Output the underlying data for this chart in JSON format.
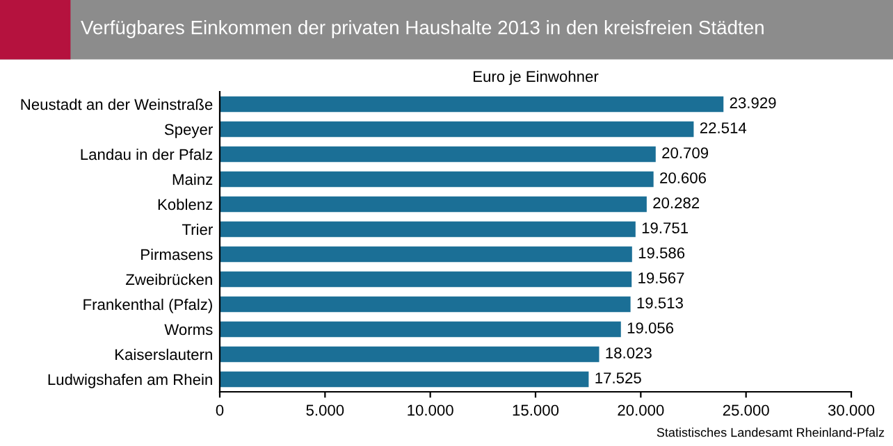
{
  "chart_data": {
    "type": "bar",
    "orientation": "horizontal",
    "title": "Verfügbares Einkommen der privaten Haushalte 2013 in den kreisfreien Städten",
    "subtitle": "Euro je Einwohner",
    "categories": [
      "Neustadt an der Weinstraße",
      "Speyer",
      "Landau in der Pfalz",
      "Mainz",
      "Koblenz",
      "Trier",
      "Pirmasens",
      "Zweibrücken",
      "Frankenthal (Pfalz)",
      "Worms",
      "Kaiserslautern",
      "Ludwigshafen am Rhein"
    ],
    "values": [
      23929,
      22514,
      20709,
      20606,
      20282,
      19751,
      19586,
      19567,
      19513,
      19056,
      18023,
      17525
    ],
    "value_labels": [
      "23.929",
      "22.514",
      "20.709",
      "20.606",
      "20.282",
      "19.751",
      "19.586",
      "19.567",
      "19.513",
      "19.056",
      "18.023",
      "17.525"
    ],
    "color": "#1b6f96",
    "xlim": [
      0,
      30000
    ],
    "xticks": [
      0,
      {
        "value": 5000,
        "label": "5.000"
      },
      {
        "value": 10000,
        "label": "10.000"
      },
      {
        "value": 15000,
        "label": "15.000"
      },
      {
        "value": 20000,
        "label": "20.000"
      },
      {
        "value": 25000,
        "label": "25.000"
      },
      {
        "value": 30000,
        "label": "30.000"
      }
    ],
    "grid": false,
    "legend": false,
    "annotations": [
      "Statistisches Landesamt Rheinland-Pfalz"
    ]
  }
}
